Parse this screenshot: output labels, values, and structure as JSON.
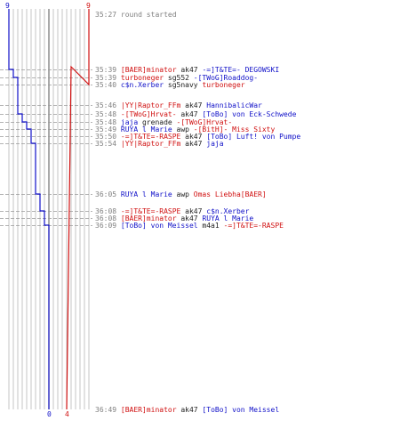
{
  "colors": {
    "blue": "#1010c8",
    "red": "#d01010",
    "grey": "#808080",
    "dark": "#202020",
    "grid": "#b8b8b8"
  },
  "chart_data": {
    "type": "line",
    "axis_top": {
      "blue": "9",
      "red": "9"
    },
    "axis_bottom": {
      "blue": "0",
      "red": "4"
    },
    "ylim": [
      0,
      9
    ],
    "series": [
      {
        "color": "blue",
        "steps": [
          [
            0,
            9
          ],
          [
            1,
            8
          ],
          [
            2,
            7
          ],
          [
            5,
            6
          ],
          [
            6,
            5
          ],
          [
            7,
            4
          ],
          [
            9,
            3
          ],
          [
            10,
            2
          ],
          [
            11,
            1
          ],
          [
            13,
            0
          ]
        ]
      },
      {
        "color": "red",
        "steps": [
          [
            0,
            9
          ],
          [
            15,
            8
          ],
          [
            16,
            7
          ],
          [
            17,
            6
          ],
          [
            18,
            5
          ],
          [
            19,
            4
          ]
        ]
      }
    ],
    "events": [
      {
        "time": "35:27",
        "parts": [
          {
            "text": "round started",
            "color": "grey"
          }
        ]
      },
      {
        "time": "35:39",
        "parts": [
          {
            "text": "[BAER]minator",
            "color": "red"
          },
          {
            "text": " ak47 ",
            "color": "dark"
          },
          {
            "text": "-=]T&TE=- DEGOWSKI",
            "color": "blue"
          }
        ]
      },
      {
        "time": "35:39",
        "parts": [
          {
            "text": "turboneger",
            "color": "red"
          },
          {
            "text": " sg552 ",
            "color": "dark"
          },
          {
            "text": "-[TWoG]Roaddog-",
            "color": "blue"
          }
        ]
      },
      {
        "time": "35:40",
        "parts": [
          {
            "text": "c$n.Xerber",
            "color": "blue"
          },
          {
            "text": " sg5navy ",
            "color": "dark"
          },
          {
            "text": "turboneger",
            "color": "red"
          }
        ]
      },
      {
        "time": "35:46",
        "parts": [
          {
            "text": "|YY|Raptor_FFm",
            "color": "red"
          },
          {
            "text": " ak47 ",
            "color": "dark"
          },
          {
            "text": "HannibalicWar",
            "color": "blue"
          }
        ]
      },
      {
        "time": "35:48",
        "parts": [
          {
            "text": "-[TWoG]Hrvat-",
            "color": "red"
          },
          {
            "text": " ak47 ",
            "color": "dark"
          },
          {
            "text": "[ToBo] von Eck-Schwede",
            "color": "blue"
          }
        ]
      },
      {
        "time": "35:48",
        "parts": [
          {
            "text": "jaja",
            "color": "blue"
          },
          {
            "text": " grenade ",
            "color": "dark"
          },
          {
            "text": "-[TWoG]Hrvat-",
            "color": "red"
          }
        ]
      },
      {
        "time": "35:49",
        "parts": [
          {
            "text": "RUYA l Marie",
            "color": "blue"
          },
          {
            "text": " awp ",
            "color": "dark"
          },
          {
            "text": "-[BitH]- Miss Sixty",
            "color": "red"
          }
        ]
      },
      {
        "time": "35:50",
        "parts": [
          {
            "text": "-=]T&TE=-RASPE",
            "color": "red"
          },
          {
            "text": " ak47 ",
            "color": "dark"
          },
          {
            "text": "[ToBo] Luft! von Pumpe",
            "color": "blue"
          }
        ]
      },
      {
        "time": "35:54",
        "parts": [
          {
            "text": "|YY|Raptor_FFm",
            "color": "red"
          },
          {
            "text": " ak47 ",
            "color": "dark"
          },
          {
            "text": "jaja",
            "color": "blue"
          }
        ]
      },
      {
        "time": "36:05",
        "parts": [
          {
            "text": "RUYA l Marie",
            "color": "blue"
          },
          {
            "text": " awp ",
            "color": "dark"
          },
          {
            "text": "Omas Liebha[BAER]",
            "color": "red"
          }
        ]
      },
      {
        "time": "36:08",
        "parts": [
          {
            "text": "-=]T&TE=-RASPE",
            "color": "red"
          },
          {
            "text": " ak47 ",
            "color": "dark"
          },
          {
            "text": "c$n.Xerber",
            "color": "blue"
          }
        ]
      },
      {
        "time": "36:08",
        "parts": [
          {
            "text": "[BAER]minator",
            "color": "red"
          },
          {
            "text": " ak47 ",
            "color": "dark"
          },
          {
            "text": "RUYA l Marie",
            "color": "blue"
          }
        ]
      },
      {
        "time": "36:09",
        "parts": [
          {
            "text": "[ToBo] von Meissel",
            "color": "blue"
          },
          {
            "text": " m4a1 ",
            "color": "dark"
          },
          {
            "text": "-=]T&TE=-RASPE",
            "color": "red"
          }
        ]
      },
      {
        "time": "36:49",
        "parts": [
          {
            "text": "[BAER]minator",
            "color": "red"
          },
          {
            "text": " ak47 ",
            "color": "dark"
          },
          {
            "text": "[ToBo] von Meissel",
            "color": "blue"
          }
        ]
      }
    ]
  }
}
